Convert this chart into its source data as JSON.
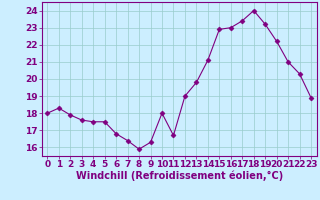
{
  "x": [
    0,
    1,
    2,
    3,
    4,
    5,
    6,
    7,
    8,
    9,
    10,
    11,
    12,
    13,
    14,
    15,
    16,
    17,
    18,
    19,
    20,
    21,
    22,
    23
  ],
  "y": [
    18.0,
    18.3,
    17.9,
    17.6,
    17.5,
    17.5,
    16.8,
    16.4,
    15.9,
    16.3,
    18.0,
    16.7,
    19.0,
    19.8,
    21.1,
    22.9,
    23.0,
    23.4,
    24.0,
    23.2,
    22.2,
    21.0,
    20.3,
    18.9
  ],
  "line_color": "#800080",
  "marker": "D",
  "marker_size": 2.5,
  "bg_color": "#cceeff",
  "grid_color": "#99cccc",
  "xlabel": "Windchill (Refroidissement éolien,°C)",
  "xlabel_fontsize": 7,
  "tick_fontsize": 6.5,
  "ylim": [
    15.5,
    24.5
  ],
  "xlim": [
    -0.5,
    23.5
  ],
  "yticks": [
    16,
    17,
    18,
    19,
    20,
    21,
    22,
    23,
    24
  ],
  "xticks": [
    0,
    1,
    2,
    3,
    4,
    5,
    6,
    7,
    8,
    9,
    10,
    11,
    12,
    13,
    14,
    15,
    16,
    17,
    18,
    19,
    20,
    21,
    22,
    23
  ]
}
